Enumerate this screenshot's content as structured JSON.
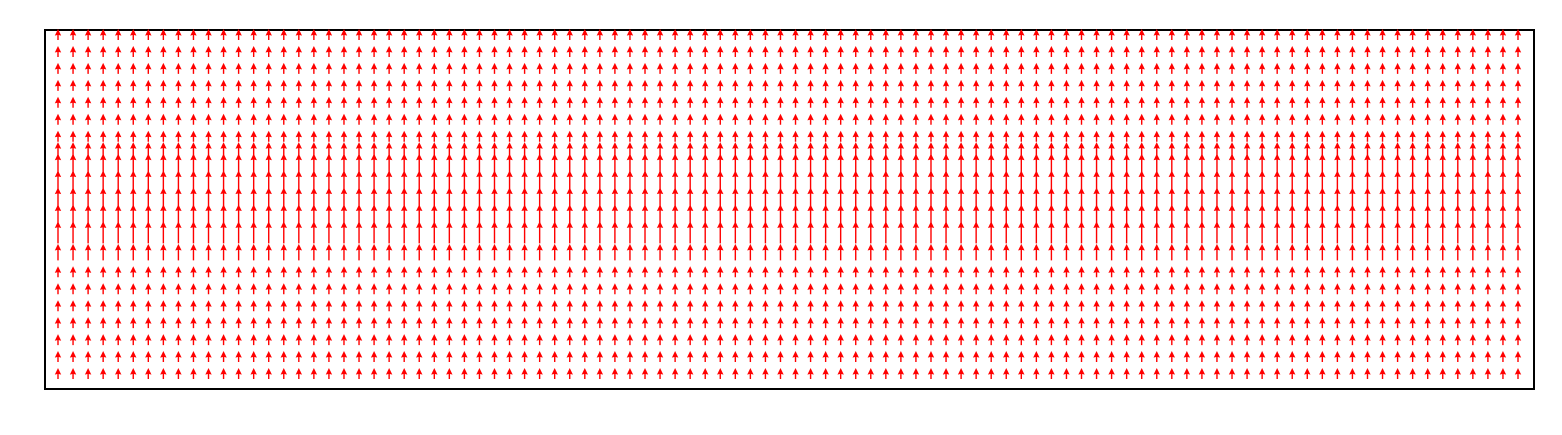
{
  "chart_data": {
    "type": "quiver",
    "title": "",
    "xlabel": "",
    "ylabel": "",
    "grid": false,
    "legend": false,
    "axis_ticks": false,
    "n_cols": 98,
    "n_rows": 21,
    "xlim": [
      0,
      97
    ],
    "ylim": [
      0,
      20
    ],
    "direction": "up",
    "arrow_length_profile": [
      1,
      1,
      1,
      1,
      1,
      1,
      1,
      1.5,
      2,
      2,
      2,
      2,
      2,
      1.5,
      1,
      1,
      1,
      1,
      1,
      1,
      1
    ],
    "colors": {
      "arrows": "#ff0000",
      "frame": "#000000",
      "background": "#ffffff"
    }
  }
}
